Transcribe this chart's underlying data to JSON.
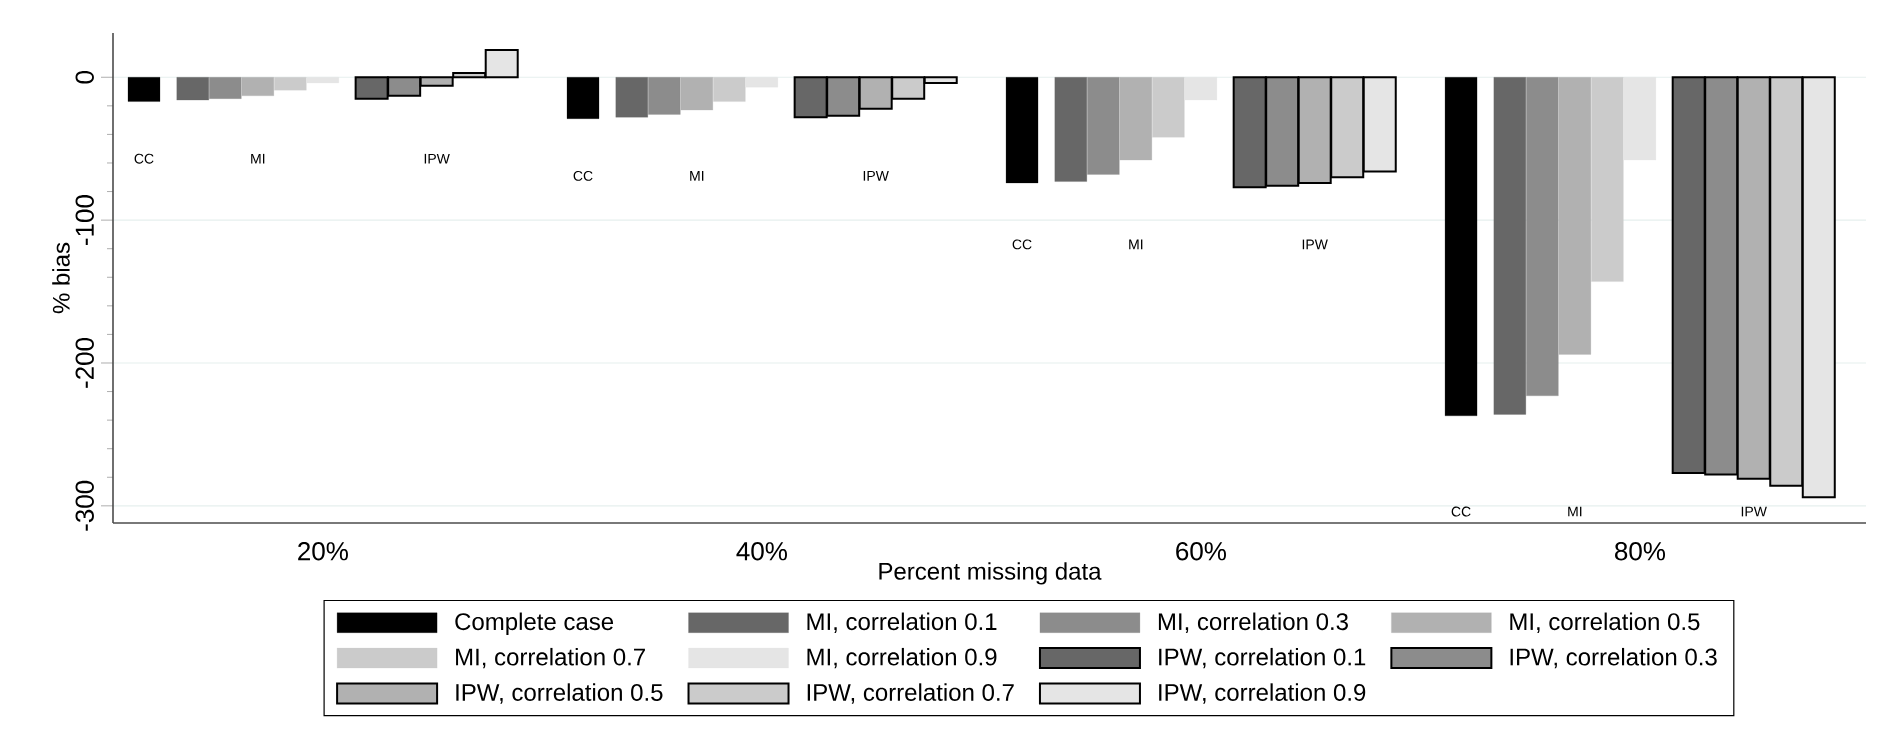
{
  "chart_data": {
    "type": "bar",
    "xlabel": "Percent missing data",
    "ylabel": "% bias",
    "categories": [
      "20%",
      "40%",
      "60%",
      "80%"
    ],
    "series": [
      {
        "name": "Complete case",
        "color": "#000000",
        "values": [
          -17,
          -29,
          -74,
          -237
        ]
      },
      {
        "name": "MI, correlation 0.1",
        "color": "#676767",
        "values": [
          -16,
          -28,
          -73,
          -236
        ]
      },
      {
        "name": "MI, correlation 0.3",
        "color": "#8c8c8c",
        "values": [
          -15,
          -26,
          -68,
          -223
        ]
      },
      {
        "name": "MI, correlation 0.5",
        "color": "#b1b1b1",
        "values": [
          -13,
          -23,
          -58,
          -194
        ]
      },
      {
        "name": "MI, correlation 0.7",
        "color": "#cbcbcb",
        "values": [
          -9,
          -17,
          -42,
          -143
        ]
      },
      {
        "name": "MI, correlation 0.9",
        "color": "#e5e5e5",
        "values": [
          -4,
          -7,
          -16,
          -58
        ]
      },
      {
        "name": "IPW, correlation 0.1",
        "color": "#676767",
        "values": [
          -15,
          -28,
          -77,
          -277
        ]
      },
      {
        "name": "IPW, correlation 0.3",
        "color": "#8c8c8c",
        "values": [
          -13,
          -27,
          -76,
          -278
        ]
      },
      {
        "name": "IPW, correlation 0.5",
        "color": "#b1b1b1",
        "values": [
          -6,
          -22,
          -74,
          -281
        ]
      },
      {
        "name": "IPW, correlation 0.7",
        "color": "#cbcbcb",
        "values": [
          3,
          -15,
          -70,
          -286
        ]
      },
      {
        "name": "IPW, correlation 0.9",
        "color": "#e5e5e5",
        "values": [
          19,
          -4,
          -66,
          -294
        ]
      }
    ],
    "ylim": [
      -312,
      31
    ],
    "yticks": [
      -300,
      -200,
      -100,
      0
    ],
    "grid": "y",
    "legend": "bottom",
    "annotations": [
      "CC",
      "MI",
      "IPW",
      "CC",
      "MI",
      "IPW",
      "CC",
      "MI",
      "IPW",
      "CC",
      "MI",
      "IPW"
    ]
  }
}
